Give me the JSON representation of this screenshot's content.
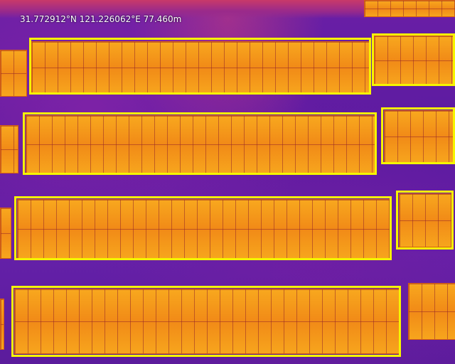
{
  "overlay": {
    "coordinates": "31.772912°N 121.226062°E 77.460m"
  },
  "colors": {
    "detection_box": "#f5f500",
    "panel": "#f59a1a",
    "ground": "#5a1aa0"
  }
}
